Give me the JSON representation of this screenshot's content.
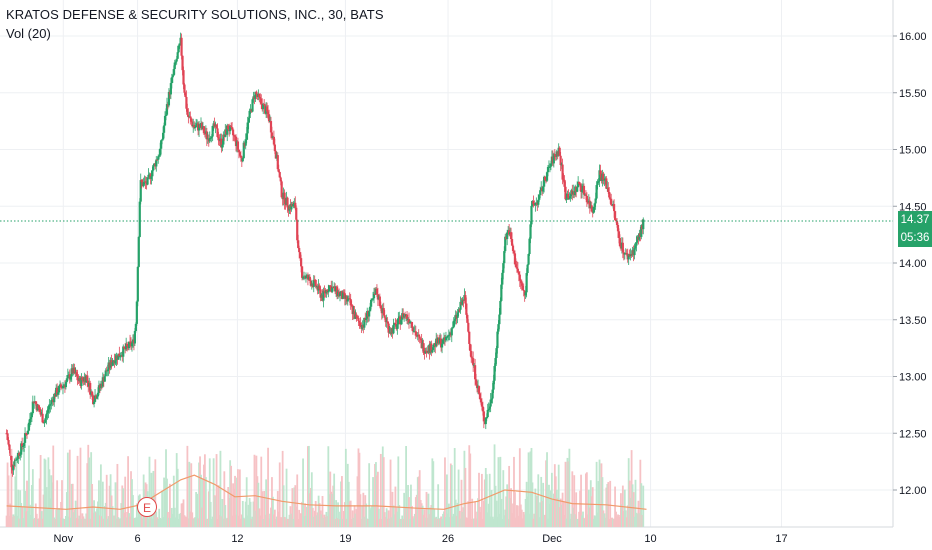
{
  "title": "KRATOS DEFENSE & SECURITY SOLUTIONS, INC., 30, BATS",
  "volume_label": "Vol (20)",
  "last_price": "14.37",
  "countdown": "05:36",
  "event_marker": "E",
  "colors": {
    "up": "#26a269",
    "down": "#e04455",
    "ma": "#f19a6b",
    "grid": "#eef0f3",
    "last_line": "#26a269"
  },
  "chart_data": {
    "type": "candlestick",
    "title": "KRATOS DEFENSE & SECURITY SOLUTIONS, INC., 30, BATS",
    "timeframe": "30",
    "ylim": [
      11.75,
      16.2
    ],
    "y_ticks": [
      "12.00",
      "12.50",
      "13.00",
      "13.50",
      "14.00",
      "14.50",
      "15.00",
      "15.50",
      "16.00"
    ],
    "x_ticks": [
      {
        "label": "Nov",
        "x": -2
      },
      {
        "label": "6",
        "x": 53
      },
      {
        "label": "12",
        "x": 127
      },
      {
        "label": "19",
        "x": 207
      },
      {
        "label": "26",
        "x": 283
      },
      {
        "label": "Dec",
        "x": 360
      },
      {
        "label": "10",
        "x": 433
      },
      {
        "label": "17",
        "x": 530
      }
    ],
    "xlim": [
      -44,
      574
    ],
    "close_path": [
      [
        -44,
        12.5
      ],
      [
        -40,
        12.2
      ],
      [
        -36,
        12.3
      ],
      [
        -32,
        12.4
      ],
      [
        -28,
        12.55
      ],
      [
        -24,
        12.8
      ],
      [
        -20,
        12.7
      ],
      [
        -16,
        12.6
      ],
      [
        -12,
        12.75
      ],
      [
        -8,
        12.85
      ],
      [
        -4,
        12.9
      ],
      [
        0,
        12.95
      ],
      [
        5,
        13.05
      ],
      [
        10,
        12.95
      ],
      [
        15,
        13.0
      ],
      [
        20,
        12.8
      ],
      [
        25,
        12.9
      ],
      [
        30,
        13.05
      ],
      [
        35,
        13.15
      ],
      [
        40,
        13.2
      ],
      [
        45,
        13.25
      ],
      [
        50,
        13.3
      ],
      [
        52,
        13.5
      ],
      [
        55,
        14.7
      ],
      [
        60,
        14.7
      ],
      [
        65,
        14.85
      ],
      [
        70,
        15.0
      ],
      [
        75,
        15.4
      ],
      [
        80,
        15.7
      ],
      [
        85,
        15.95
      ],
      [
        87,
        15.6
      ],
      [
        90,
        15.3
      ],
      [
        95,
        15.2
      ],
      [
        100,
        15.2
      ],
      [
        105,
        15.1
      ],
      [
        110,
        15.2
      ],
      [
        115,
        15.05
      ],
      [
        120,
        15.2
      ],
      [
        125,
        15.1
      ],
      [
        130,
        14.9
      ],
      [
        135,
        15.25
      ],
      [
        140,
        15.5
      ],
      [
        145,
        15.4
      ],
      [
        150,
        15.3
      ],
      [
        155,
        15.0
      ],
      [
        160,
        14.6
      ],
      [
        165,
        14.5
      ],
      [
        170,
        14.5
      ],
      [
        172,
        14.1
      ],
      [
        175,
        13.9
      ],
      [
        180,
        13.85
      ],
      [
        185,
        13.8
      ],
      [
        190,
        13.7
      ],
      [
        195,
        13.8
      ],
      [
        200,
        13.75
      ],
      [
        205,
        13.7
      ],
      [
        210,
        13.65
      ],
      [
        215,
        13.5
      ],
      [
        220,
        13.45
      ],
      [
        225,
        13.6
      ],
      [
        230,
        13.75
      ],
      [
        235,
        13.55
      ],
      [
        240,
        13.4
      ],
      [
        245,
        13.45
      ],
      [
        250,
        13.55
      ],
      [
        255,
        13.5
      ],
      [
        260,
        13.35
      ],
      [
        265,
        13.25
      ],
      [
        270,
        13.25
      ],
      [
        275,
        13.3
      ],
      [
        280,
        13.3
      ],
      [
        285,
        13.4
      ],
      [
        290,
        13.55
      ],
      [
        295,
        13.7
      ],
      [
        300,
        13.2
      ],
      [
        305,
        12.9
      ],
      [
        310,
        12.6
      ],
      [
        315,
        12.8
      ],
      [
        320,
        13.4
      ],
      [
        325,
        14.2
      ],
      [
        328,
        14.3
      ],
      [
        332,
        14.05
      ],
      [
        336,
        13.85
      ],
      [
        340,
        13.7
      ],
      [
        345,
        14.5
      ],
      [
        350,
        14.55
      ],
      [
        355,
        14.75
      ],
      [
        360,
        14.9
      ],
      [
        365,
        15.0
      ],
      [
        370,
        14.6
      ],
      [
        375,
        14.6
      ],
      [
        380,
        14.7
      ],
      [
        385,
        14.6
      ],
      [
        390,
        14.45
      ],
      [
        395,
        14.8
      ],
      [
        400,
        14.7
      ],
      [
        405,
        14.5
      ],
      [
        410,
        14.2
      ],
      [
        415,
        14.05
      ],
      [
        420,
        14.1
      ],
      [
        425,
        14.25
      ],
      [
        428,
        14.37
      ]
    ],
    "volume_ma": [
      [
        -44,
        11.86
      ],
      [
        0,
        11.83
      ],
      [
        20,
        11.85
      ],
      [
        40,
        11.83
      ],
      [
        55,
        11.87
      ],
      [
        70,
        11.98
      ],
      [
        85,
        12.09
      ],
      [
        95,
        12.13
      ],
      [
        110,
        12.05
      ],
      [
        125,
        11.94
      ],
      [
        140,
        11.95
      ],
      [
        160,
        11.9
      ],
      [
        180,
        11.87
      ],
      [
        200,
        11.86
      ],
      [
        230,
        11.86
      ],
      [
        260,
        11.84
      ],
      [
        280,
        11.83
      ],
      [
        295,
        11.88
      ],
      [
        305,
        11.9
      ],
      [
        325,
        12.0
      ],
      [
        345,
        11.98
      ],
      [
        360,
        11.92
      ],
      [
        375,
        11.88
      ],
      [
        400,
        11.87
      ],
      [
        430,
        11.83
      ]
    ],
    "last_price": 14.37
  }
}
